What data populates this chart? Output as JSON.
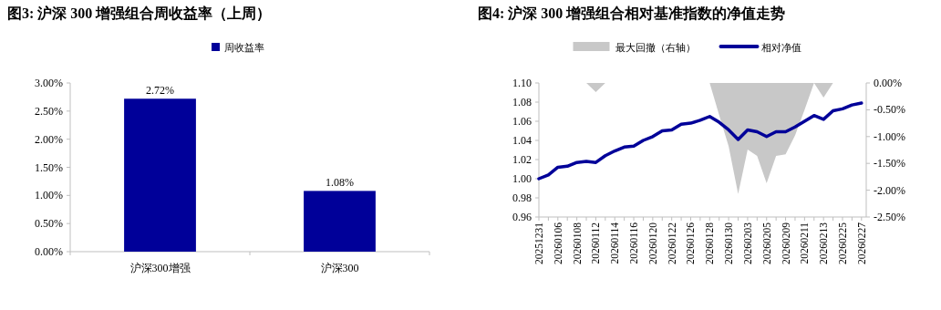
{
  "chart_data": [
    {
      "type": "bar",
      "title": "图3:  沪深 300 增强组合周收益率（上周）",
      "categories": [
        "沪深300增强",
        "沪深300"
      ],
      "series": [
        {
          "name": "周收益率",
          "color": "#000099",
          "values": [
            2.72,
            1.08
          ],
          "value_labels": [
            "2.72%",
            "1.08%"
          ]
        }
      ],
      "ylim": [
        0,
        3
      ],
      "yticks": [
        {
          "value": 0,
          "label": "0.00%"
        },
        {
          "value": 0.5,
          "label": "0.50%"
        },
        {
          "value": 1,
          "label": "1.00%"
        },
        {
          "value": 1.5,
          "label": "1.50%"
        },
        {
          "value": 2,
          "label": "2.00%"
        },
        {
          "value": 2.5,
          "label": "2.50%"
        },
        {
          "value": 3,
          "label": "3.00%"
        }
      ],
      "legend": "top"
    },
    {
      "type": "line",
      "title": "图4:  沪深 300 增强组合相对基准指数的净值走势",
      "categories": [
        "20251231",
        null,
        "20260106",
        null,
        "20260108",
        null,
        "20260112",
        null,
        "20260114",
        null,
        "20260116",
        null,
        "20260120",
        null,
        "20260122",
        null,
        "20260126",
        null,
        "20260128",
        null,
        "20260130",
        null,
        "20260203",
        null,
        "20260205",
        null,
        "20260209",
        null,
        "20260211",
        null,
        "20260213",
        null,
        "20260225",
        null,
        "20260227"
      ],
      "series": [
        {
          "name": "最大回撤（右轴）",
          "type": "area",
          "axis": "y2",
          "color": "#c8c8c8",
          "values": [
            0,
            0,
            0,
            0,
            0,
            0,
            -0.17,
            0,
            0,
            0,
            0,
            0,
            0,
            0,
            0,
            0,
            0,
            0,
            0,
            -0.6,
            -1.18,
            -2.07,
            -1.24,
            -1.36,
            -1.87,
            -1.36,
            -1.33,
            -0.98,
            -0.5,
            0,
            -0.27,
            0,
            0,
            0,
            0
          ]
        },
        {
          "name": "相对净值",
          "type": "line",
          "color": "#000099",
          "values": [
            1.0,
            1.004,
            1.012,
            1.013,
            1.017,
            1.018,
            1.017,
            1.024,
            1.029,
            1.033,
            1.034,
            1.04,
            1.044,
            1.05,
            1.051,
            1.057,
            1.058,
            1.061,
            1.065,
            1.059,
            1.051,
            1.041,
            1.051,
            1.049,
            1.044,
            1.049,
            1.049,
            1.054,
            1.06,
            1.066,
            1.062,
            1.071,
            1.073,
            1.077,
            1.079
          ]
        }
      ],
      "ylim": [
        0.96,
        1.1
      ],
      "yticks": [
        0.96,
        0.98,
        {
          "value": 1,
          "label": "1.00"
        },
        1.02,
        1.04,
        1.06,
        1.08,
        {
          "value": 1.1,
          "label": "1.10"
        }
      ],
      "y2lim": [
        -2.5,
        0
      ],
      "y2ticks": [
        {
          "value": -2.5,
          "label": "-2.50%"
        },
        {
          "value": -2,
          "label": "-2.00%"
        },
        {
          "value": -1.5,
          "label": "-1.50%"
        },
        {
          "value": -1,
          "label": "-1.00%"
        },
        {
          "value": -0.5,
          "label": "-0.50%"
        },
        {
          "value": 0,
          "label": "0.00%"
        }
      ],
      "legend": "top",
      "marker": "none",
      "line_style": "solid"
    }
  ]
}
